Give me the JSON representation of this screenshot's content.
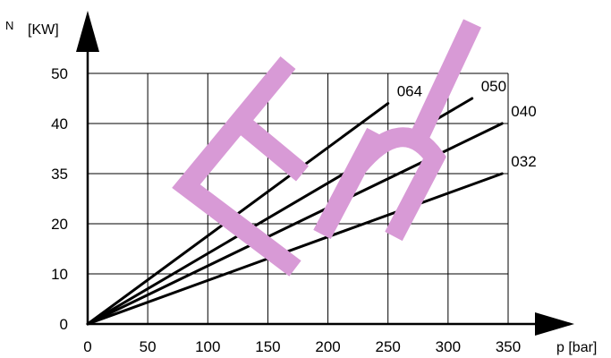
{
  "chart_data": {
    "type": "line",
    "xlabel": "p [bar]",
    "ylabel_symbol": "N",
    "ylabel_unit": "[KW]",
    "x_ticks": [
      "0",
      "50",
      "100",
      "150",
      "200",
      "250",
      "300",
      "350"
    ],
    "y_ticks": [
      "0",
      "10",
      "20",
      "35",
      "40",
      "50"
    ],
    "xlim": [
      0,
      350
    ],
    "grid": true,
    "series": [
      {
        "name": "064",
        "x": [
          0,
          250
        ],
        "y": [
          0,
          44
        ]
      },
      {
        "name": "050",
        "x": [
          0,
          320
        ],
        "y": [
          0,
          45
        ]
      },
      {
        "name": "040",
        "x": [
          0,
          345
        ],
        "y": [
          0,
          40
        ]
      },
      {
        "name": "032",
        "x": [
          0,
          345
        ],
        "y": [
          0,
          35
        ]
      }
    ],
    "watermark": "Eli",
    "watermark_color": "#d89ad6"
  }
}
